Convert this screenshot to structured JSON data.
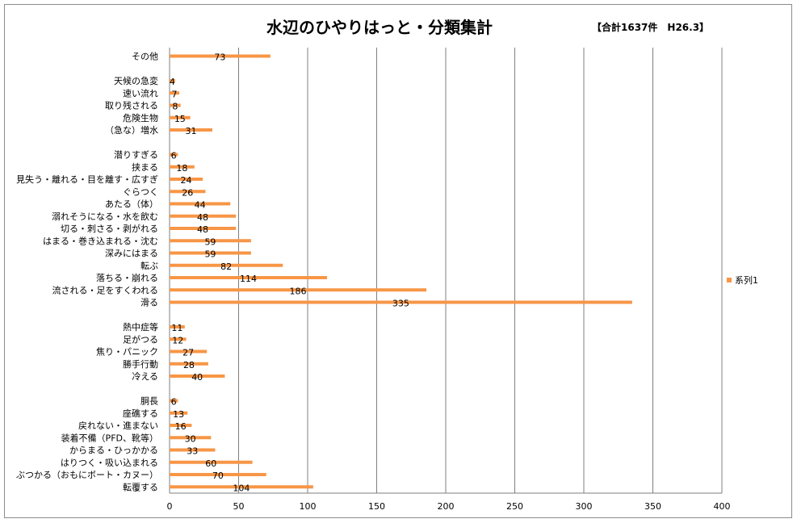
{
  "chart_data": {
    "type": "bar",
    "orientation": "horizontal",
    "title": "水辺のひやりはっと・分類集計",
    "subtitle": "【合計1637件　H26.3】",
    "xlabel": "",
    "ylabel": "",
    "xlim": [
      0,
      400
    ],
    "xticks": [
      0,
      50,
      100,
      150,
      200,
      250,
      300,
      350,
      400
    ],
    "grid": true,
    "legend_position": "right",
    "bar_color": "#f79646",
    "series": [
      {
        "name": "系列1"
      }
    ],
    "groups": [
      {
        "items": [
          {
            "label": "その他",
            "value": 73
          }
        ]
      },
      {
        "items": [
          {
            "label": "天候の急変",
            "value": 4
          },
          {
            "label": "速い流れ",
            "value": 7
          },
          {
            "label": "取り残される",
            "value": 8
          },
          {
            "label": "危険生物",
            "value": 15
          },
          {
            "label": "（急な）増水",
            "value": 31
          }
        ]
      },
      {
        "items": [
          {
            "label": "潜りすぎる",
            "value": 6
          },
          {
            "label": "挟まる",
            "value": 18
          },
          {
            "label": "見失う・離れる・目を離す・広すぎ",
            "value": 24
          },
          {
            "label": "ぐらつく",
            "value": 26
          },
          {
            "label": "あたる（体）",
            "value": 44
          },
          {
            "label": "溺れそうになる・水を飲む",
            "value": 48
          },
          {
            "label": "切る・刺さる・剥がれる",
            "value": 48
          },
          {
            "label": "はまる・巻き込まれる・沈む",
            "value": 59
          },
          {
            "label": "深みにはまる",
            "value": 59
          },
          {
            "label": "転ぶ",
            "value": 82
          },
          {
            "label": "落ちる・崩れる",
            "value": 114
          },
          {
            "label": "流される・足をすくわれる",
            "value": 186
          },
          {
            "label": "滑る",
            "value": 335
          }
        ]
      },
      {
        "items": [
          {
            "label": "熱中症等",
            "value": 11
          },
          {
            "label": "足がつる",
            "value": 12
          },
          {
            "label": "焦り・パニック",
            "value": 27
          },
          {
            "label": "勝手行動",
            "value": 28
          },
          {
            "label": "冷える",
            "value": 40
          }
        ]
      },
      {
        "items": [
          {
            "label": "胴長",
            "value": 6
          },
          {
            "label": "座礁する",
            "value": 13
          },
          {
            "label": "戻れない・進まない",
            "value": 16
          },
          {
            "label": "装着不備（PFD、靴等）",
            "value": 30
          },
          {
            "label": "からまる・ひっかかる",
            "value": 33
          },
          {
            "label": "はりつく・吸い込まれる",
            "value": 60
          },
          {
            "label": "ぶつかる（おもにボート・カヌー）",
            "value": 70
          },
          {
            "label": "転覆する",
            "value": 104
          }
        ]
      }
    ]
  }
}
